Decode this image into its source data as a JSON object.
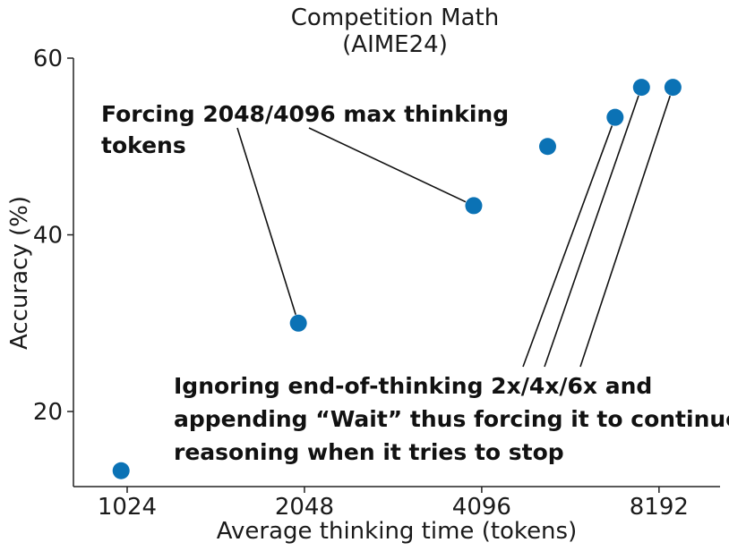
{
  "chart_data": {
    "type": "scatter",
    "title_line1": "Competition Math",
    "title_line2": "(AIME24)",
    "xlabel": "Average thinking time (tokens)",
    "ylabel": "Accuracy (%)",
    "xscale": "log2",
    "xlim": [
      830,
      10400
    ],
    "ylim": [
      11.5,
      60
    ],
    "xticks": [
      1024,
      2048,
      4096,
      8192
    ],
    "xtick_labels": [
      "1024",
      "2048",
      "4096",
      "8192"
    ],
    "yticks": [
      20,
      40,
      60
    ],
    "ytick_labels": [
      "20",
      "40",
      "60"
    ],
    "grid": false,
    "marker_color": "#0b72b5",
    "points": [
      {
        "x": 1000,
        "y": 13.3
      },
      {
        "x": 2000,
        "y": 30.0
      },
      {
        "x": 3970,
        "y": 43.3
      },
      {
        "x": 5300,
        "y": 50.0
      },
      {
        "x": 6900,
        "y": 53.3
      },
      {
        "x": 7650,
        "y": 56.7
      },
      {
        "x": 8650,
        "y": 56.7
      }
    ],
    "annotations": [
      {
        "lines": [
          "Forcing 2048/4096 max thinking",
          "tokens"
        ],
        "targets": [
          1,
          2
        ]
      },
      {
        "lines": [
          "Ignoring end-of-thinking 2x/4x/6x and",
          "appending “Wait” thus forcing it to continue",
          "reasoning when it tries to stop"
        ],
        "targets": [
          4,
          5,
          6
        ]
      }
    ]
  }
}
